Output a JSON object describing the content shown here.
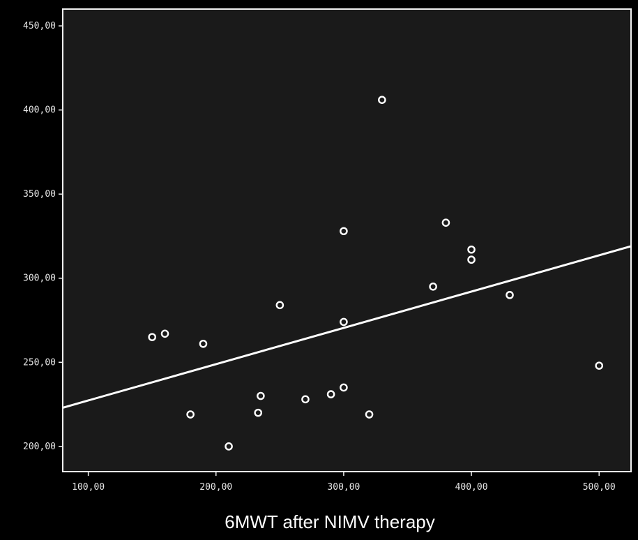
{
  "chart_data": {
    "type": "scatter",
    "title": "",
    "xlabel": "6MWT after NIMV therapy",
    "ylabel": "",
    "xlim": [
      80,
      525
    ],
    "ylim": [
      185,
      460
    ],
    "x_ticks": [
      100,
      200,
      300,
      400,
      500
    ],
    "y_ticks": [
      200,
      250,
      300,
      350,
      400,
      450
    ],
    "x_tick_labels": [
      "100,00",
      "200,00",
      "300,00",
      "400,00",
      "500,00"
    ],
    "y_tick_labels": [
      "200,00",
      "250,00",
      "300,00",
      "350,00",
      "400,00",
      "450,00"
    ],
    "grid": false,
    "legend": "none",
    "colors": {
      "background": "#000000",
      "plot_area": "#1a1a1a",
      "frame": "#f0f0f0",
      "marks": "#ffffff"
    },
    "points": [
      {
        "x": 150,
        "y": 265
      },
      {
        "x": 160,
        "y": 267
      },
      {
        "x": 180,
        "y": 219
      },
      {
        "x": 190,
        "y": 261
      },
      {
        "x": 210,
        "y": 200
      },
      {
        "x": 233,
        "y": 220
      },
      {
        "x": 235,
        "y": 230
      },
      {
        "x": 250,
        "y": 284
      },
      {
        "x": 270,
        "y": 228
      },
      {
        "x": 290,
        "y": 231
      },
      {
        "x": 300,
        "y": 328
      },
      {
        "x": 300,
        "y": 274
      },
      {
        "x": 300,
        "y": 235
      },
      {
        "x": 320,
        "y": 219
      },
      {
        "x": 330,
        "y": 406
      },
      {
        "x": 370,
        "y": 295
      },
      {
        "x": 380,
        "y": 333
      },
      {
        "x": 400,
        "y": 317
      },
      {
        "x": 400,
        "y": 311
      },
      {
        "x": 430,
        "y": 290
      },
      {
        "x": 500,
        "y": 248
      }
    ],
    "fit_line": {
      "x": [
        80,
        525
      ],
      "y": [
        223,
        319
      ]
    }
  }
}
